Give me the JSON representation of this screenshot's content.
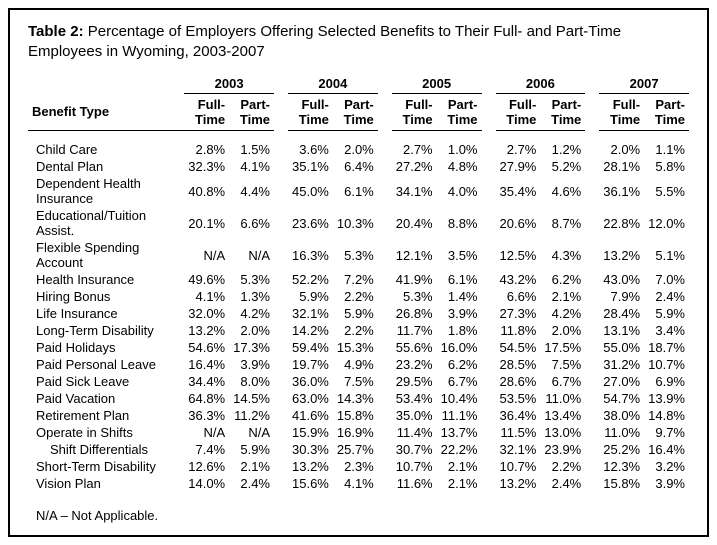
{
  "title_prefix": "Table 2: ",
  "title_text": "Percentage of Employers Offering Selected Benefits to Their Full- and Part-Time Employees in Wyoming, 2003-2007",
  "benefit_header": "Benefit Type",
  "years": [
    "2003",
    "2004",
    "2005",
    "2006",
    "2007"
  ],
  "sub_headers": [
    "Full-Time",
    "Part-Time"
  ],
  "rows": [
    {
      "label": "Child Care",
      "indent": false,
      "vals": [
        "2.8%",
        "1.5%",
        "3.6%",
        "2.0%",
        "2.7%",
        "1.0%",
        "2.7%",
        "1.2%",
        "2.0%",
        "1.1%"
      ]
    },
    {
      "label": "Dental Plan",
      "indent": false,
      "vals": [
        "32.3%",
        "4.1%",
        "35.1%",
        "6.4%",
        "27.2%",
        "4.8%",
        "27.9%",
        "5.2%",
        "28.1%",
        "5.8%"
      ]
    },
    {
      "label": "Dependent Health Insurance",
      "indent": false,
      "vals": [
        "40.8%",
        "4.4%",
        "45.0%",
        "6.1%",
        "34.1%",
        "4.0%",
        "35.4%",
        "4.6%",
        "36.1%",
        "5.5%"
      ]
    },
    {
      "label": "Educational/Tuition Assist.",
      "indent": false,
      "vals": [
        "20.1%",
        "6.6%",
        "23.6%",
        "10.3%",
        "20.4%",
        "8.8%",
        "20.6%",
        "8.7%",
        "22.8%",
        "12.0%"
      ]
    },
    {
      "label": "Flexible Spending Account",
      "indent": false,
      "vals": [
        "N/A",
        "N/A",
        "16.3%",
        "5.3%",
        "12.1%",
        "3.5%",
        "12.5%",
        "4.3%",
        "13.2%",
        "5.1%"
      ]
    },
    {
      "label": "Health Insurance",
      "indent": false,
      "vals": [
        "49.6%",
        "5.3%",
        "52.2%",
        "7.2%",
        "41.9%",
        "6.1%",
        "43.2%",
        "6.2%",
        "43.0%",
        "7.0%"
      ]
    },
    {
      "label": "Hiring Bonus",
      "indent": false,
      "vals": [
        "4.1%",
        "1.3%",
        "5.9%",
        "2.2%",
        "5.3%",
        "1.4%",
        "6.6%",
        "2.1%",
        "7.9%",
        "2.4%"
      ]
    },
    {
      "label": "Life Insurance",
      "indent": false,
      "vals": [
        "32.0%",
        "4.2%",
        "32.1%",
        "5.9%",
        "26.8%",
        "3.9%",
        "27.3%",
        "4.2%",
        "28.4%",
        "5.9%"
      ]
    },
    {
      "label": "Long-Term Disability",
      "indent": false,
      "vals": [
        "13.2%",
        "2.0%",
        "14.2%",
        "2.2%",
        "11.7%",
        "1.8%",
        "11.8%",
        "2.0%",
        "13.1%",
        "3.4%"
      ]
    },
    {
      "label": "Paid Holidays",
      "indent": false,
      "vals": [
        "54.6%",
        "17.3%",
        "59.4%",
        "15.3%",
        "55.6%",
        "16.0%",
        "54.5%",
        "17.5%",
        "55.0%",
        "18.7%"
      ]
    },
    {
      "label": "Paid Personal Leave",
      "indent": false,
      "vals": [
        "16.4%",
        "3.9%",
        "19.7%",
        "4.9%",
        "23.2%",
        "6.2%",
        "28.5%",
        "7.5%",
        "31.2%",
        "10.7%"
      ]
    },
    {
      "label": "Paid Sick Leave",
      "indent": false,
      "vals": [
        "34.4%",
        "8.0%",
        "36.0%",
        "7.5%",
        "29.5%",
        "6.7%",
        "28.6%",
        "6.7%",
        "27.0%",
        "6.9%"
      ]
    },
    {
      "label": "Paid Vacation",
      "indent": false,
      "vals": [
        "64.8%",
        "14.5%",
        "63.0%",
        "14.3%",
        "53.4%",
        "10.4%",
        "53.5%",
        "11.0%",
        "54.7%",
        "13.9%"
      ]
    },
    {
      "label": "Retirement Plan",
      "indent": false,
      "vals": [
        "36.3%",
        "11.2%",
        "41.6%",
        "15.8%",
        "35.0%",
        "11.1%",
        "36.4%",
        "13.4%",
        "38.0%",
        "14.8%"
      ]
    },
    {
      "label": "Operate in Shifts",
      "indent": false,
      "vals": [
        "N/A",
        "N/A",
        "15.9%",
        "16.9%",
        "11.4%",
        "13.7%",
        "11.5%",
        "13.0%",
        "11.0%",
        "9.7%"
      ]
    },
    {
      "label": "Shift Differentials",
      "indent": true,
      "vals": [
        "7.4%",
        "5.9%",
        "30.3%",
        "25.7%",
        "30.7%",
        "22.2%",
        "32.1%",
        "23.9%",
        "25.2%",
        "16.4%"
      ]
    },
    {
      "label": "Short-Term Disability",
      "indent": false,
      "vals": [
        "12.6%",
        "2.1%",
        "13.2%",
        "2.3%",
        "10.7%",
        "2.1%",
        "10.7%",
        "2.2%",
        "12.3%",
        "3.2%"
      ]
    },
    {
      "label": "Vision Plan",
      "indent": false,
      "vals": [
        "14.0%",
        "2.4%",
        "15.6%",
        "4.1%",
        "11.6%",
        "2.1%",
        "13.2%",
        "2.4%",
        "15.8%",
        "3.9%"
      ]
    }
  ],
  "footnote": "N/A – Not Applicable.",
  "colors": {
    "border": "#000000",
    "background": "#ffffff",
    "text": "#000000"
  }
}
